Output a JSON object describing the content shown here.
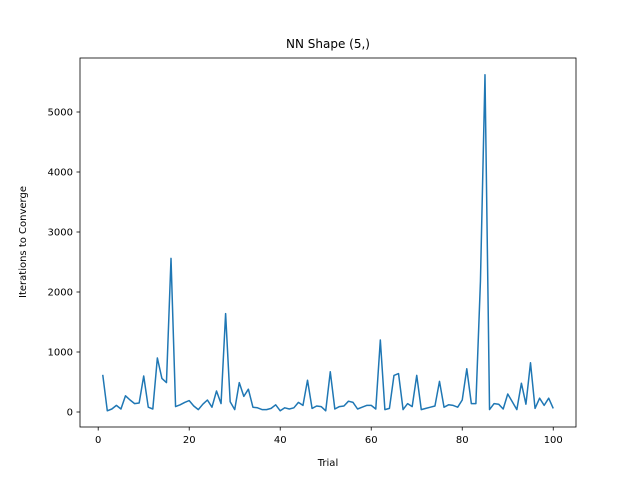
{
  "chart_data": {
    "type": "line",
    "title": "NN Shape (5,)",
    "xlabel": "Trial",
    "ylabel": "Iterations to Converge",
    "xlim": [
      -4,
      105
    ],
    "ylim": [
      -250,
      5900
    ],
    "xticks": [
      0,
      20,
      40,
      60,
      80,
      100
    ],
    "yticks": [
      0,
      1000,
      2000,
      3000,
      4000,
      5000
    ],
    "grid": false,
    "legend": "none",
    "line_color": "#1f77b4",
    "series": [
      {
        "x": [
          1,
          2,
          3,
          4,
          5,
          6,
          7,
          8,
          9,
          10,
          11,
          12,
          13,
          14,
          15,
          16,
          17,
          18,
          19,
          20,
          21,
          22,
          23,
          24,
          25,
          26,
          27,
          28,
          29,
          30,
          31,
          32,
          33,
          34,
          35,
          36,
          37,
          38,
          39,
          40,
          41,
          42,
          43,
          44,
          45,
          46,
          47,
          48,
          49,
          50,
          51,
          52,
          53,
          54,
          55,
          56,
          57,
          58,
          59,
          60,
          61,
          62,
          63,
          64,
          65,
          66,
          67,
          68,
          69,
          70,
          71,
          72,
          73,
          74,
          75,
          76,
          77,
          78,
          79,
          80,
          81,
          82,
          83,
          84,
          85,
          86,
          87,
          88,
          89,
          90,
          91,
          92,
          93,
          94,
          95,
          96,
          97,
          98,
          99,
          100
        ],
        "values": [
          620,
          20,
          50,
          110,
          50,
          270,
          200,
          140,
          150,
          600,
          80,
          50,
          900,
          560,
          490,
          2560,
          90,
          120,
          160,
          190,
          100,
          40,
          130,
          200,
          80,
          350,
          140,
          1640,
          170,
          40,
          490,
          260,
          380,
          80,
          70,
          40,
          40,
          60,
          120,
          20,
          70,
          50,
          70,
          160,
          110,
          530,
          60,
          100,
          90,
          20,
          670,
          50,
          90,
          100,
          180,
          160,
          50,
          80,
          110,
          110,
          50,
          1200,
          40,
          60,
          610,
          640,
          40,
          140,
          90,
          610,
          40,
          60,
          80,
          100,
          510,
          80,
          120,
          110,
          80,
          200,
          720,
          140,
          140,
          2180,
          5620,
          40,
          140,
          130,
          50,
          300,
          170,
          40,
          480,
          130,
          820,
          60,
          230,
          110,
          230,
          60
        ]
      }
    ]
  }
}
